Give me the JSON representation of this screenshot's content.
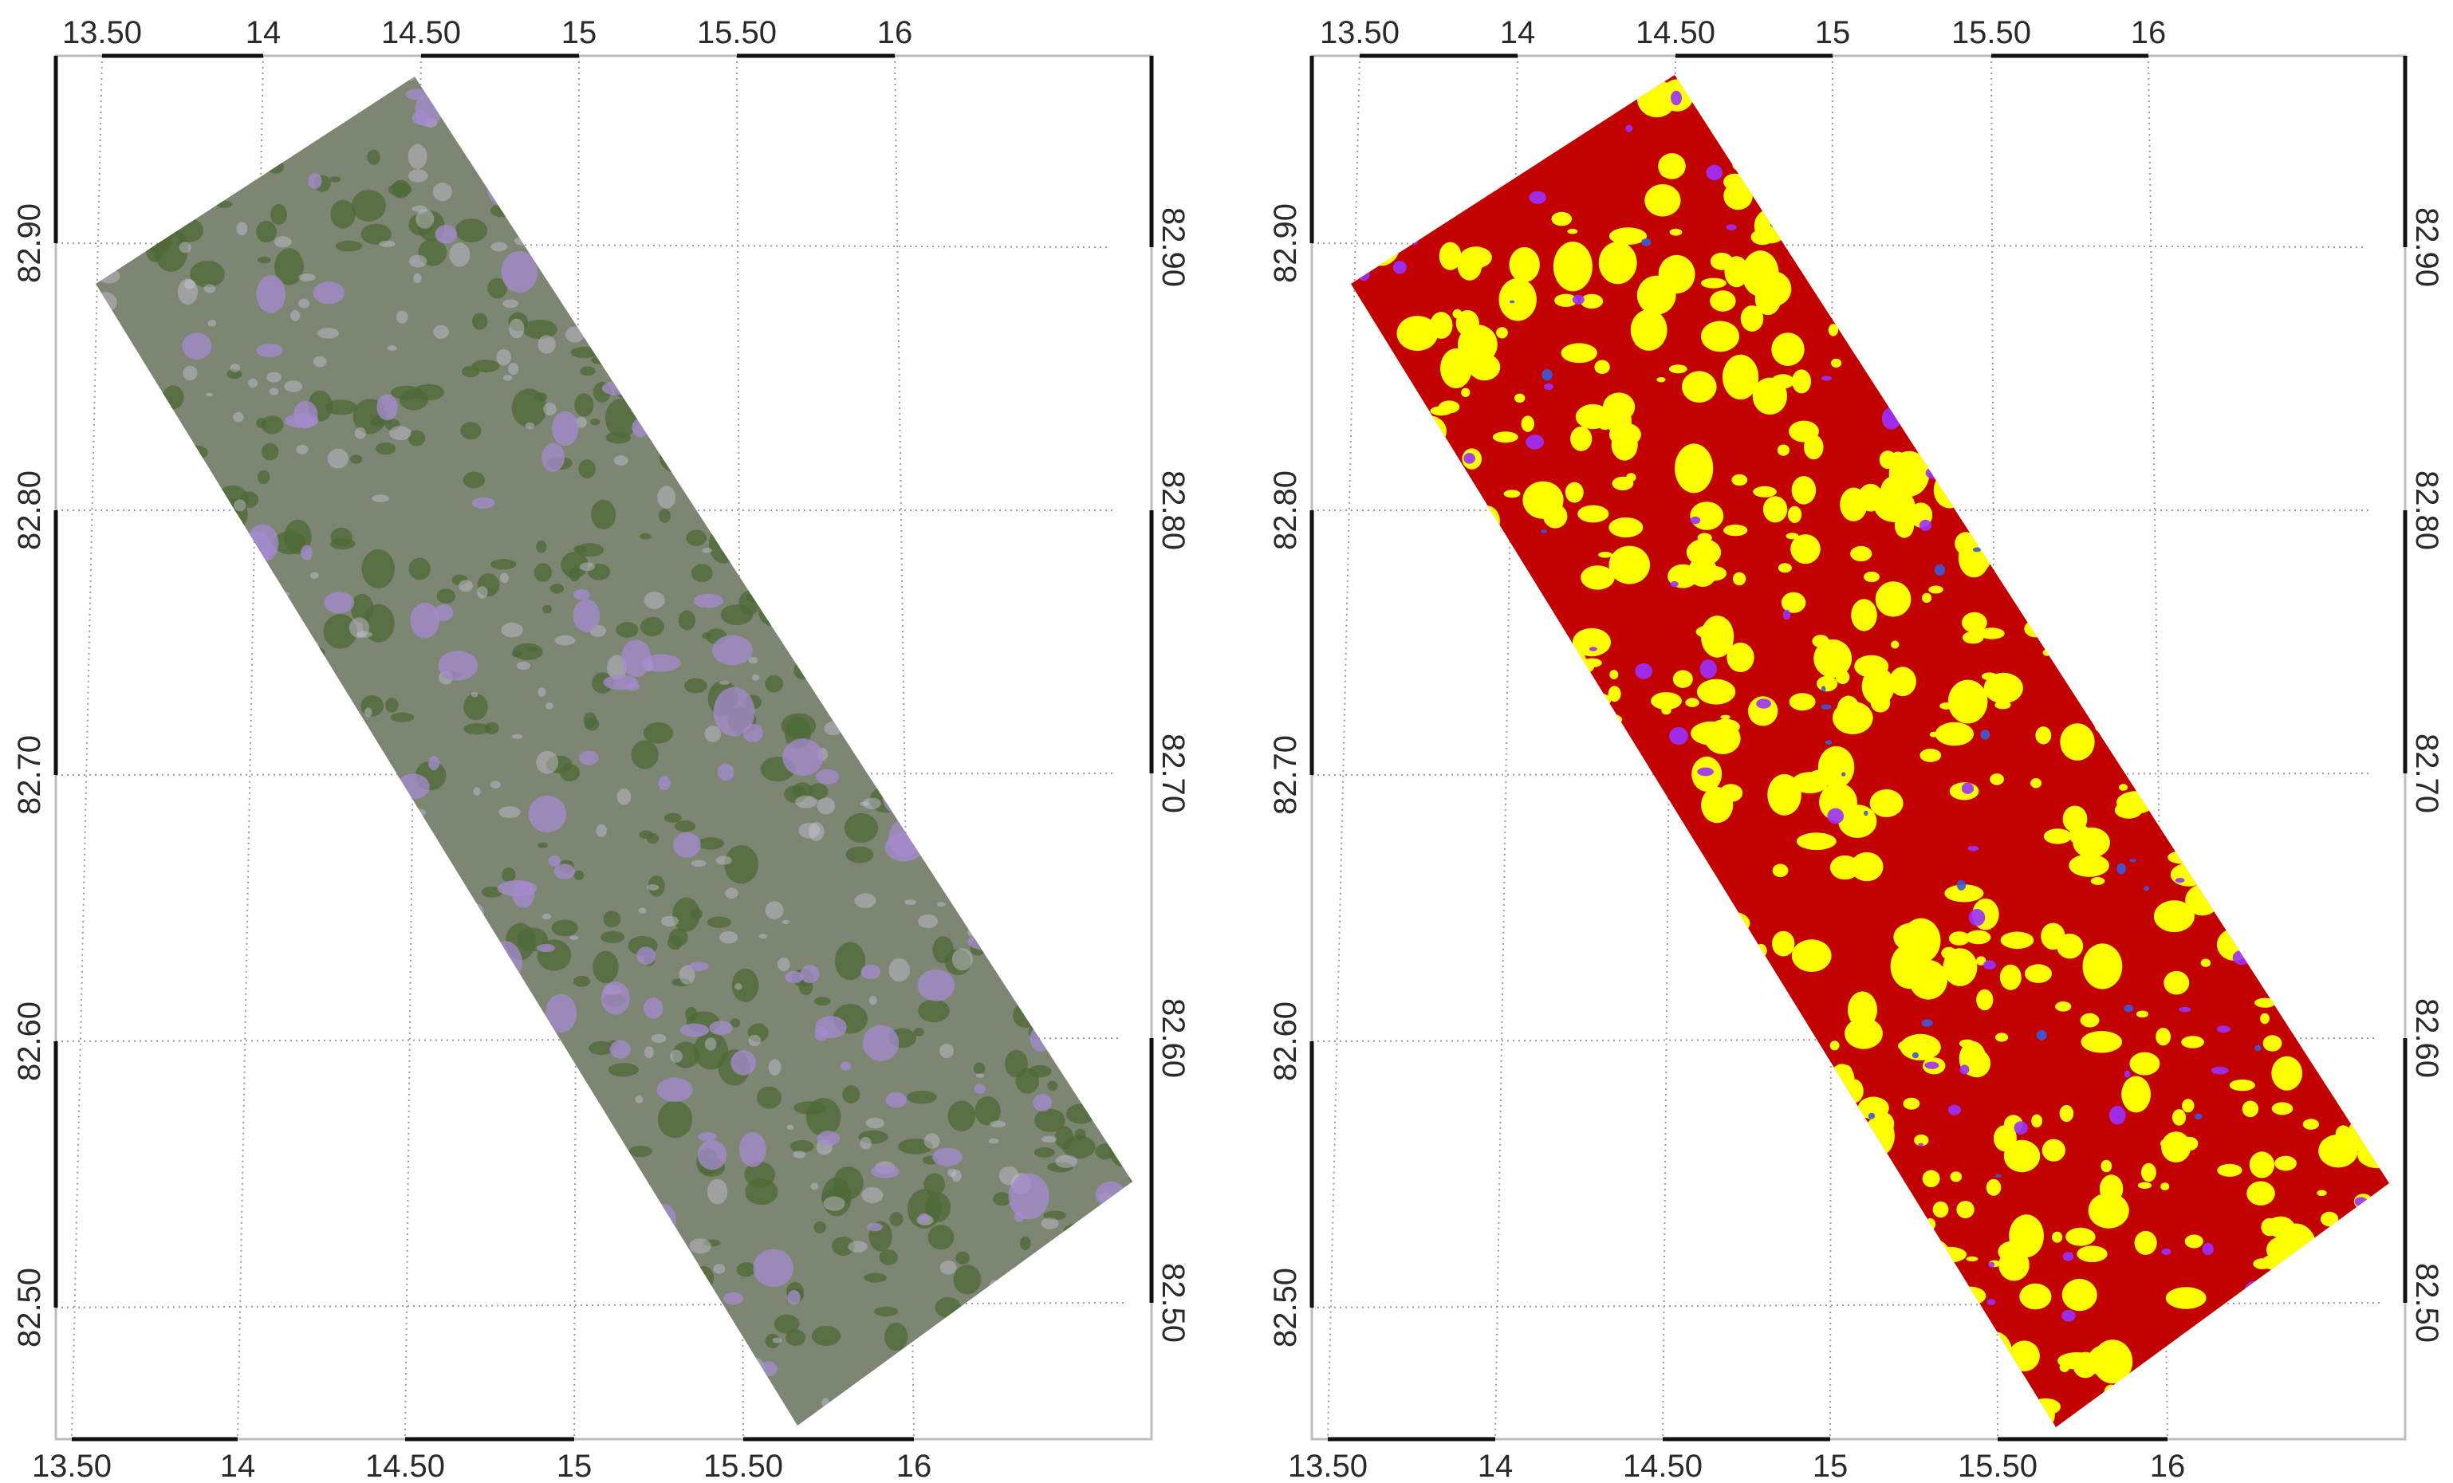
{
  "maps": [
    {
      "name": "satellite-scene",
      "top_lon_labels": [
        "13.50",
        "14",
        "14.50",
        "15",
        "15.50",
        "16"
      ],
      "bottom_lon_labels": [
        "13.50",
        "14",
        "14.50",
        "15",
        "15.50",
        "16"
      ],
      "left_lat_labels": [
        "82.90",
        "82.80",
        "82.70",
        "82.60",
        "82.50"
      ],
      "right_lat_labels": [
        "82.90",
        "82.80",
        "82.70",
        "82.60",
        "82.50"
      ],
      "colors": {
        "base": "#7d8573",
        "green": "#4f6a38",
        "purple": "#a58bd0",
        "light": "#c9c3d6"
      }
    },
    {
      "name": "classified-scene",
      "top_lon_labels": [
        "13.50",
        "14",
        "14.50",
        "15",
        "15.50",
        "16"
      ],
      "bottom_lon_labels": [
        "13.50",
        "14",
        "14.50",
        "15",
        "15.50",
        "16"
      ],
      "left_lat_labels": [
        "82.90",
        "82.80",
        "82.70",
        "82.60",
        "82.50"
      ],
      "right_lat_labels": [
        "82.90",
        "82.80",
        "82.70",
        "82.60",
        "82.50"
      ],
      "colors": {
        "base": "#c20000",
        "yellow": "#ffff00",
        "purple": "#9b30ff",
        "blue": "#3a5bd9"
      }
    }
  ]
}
